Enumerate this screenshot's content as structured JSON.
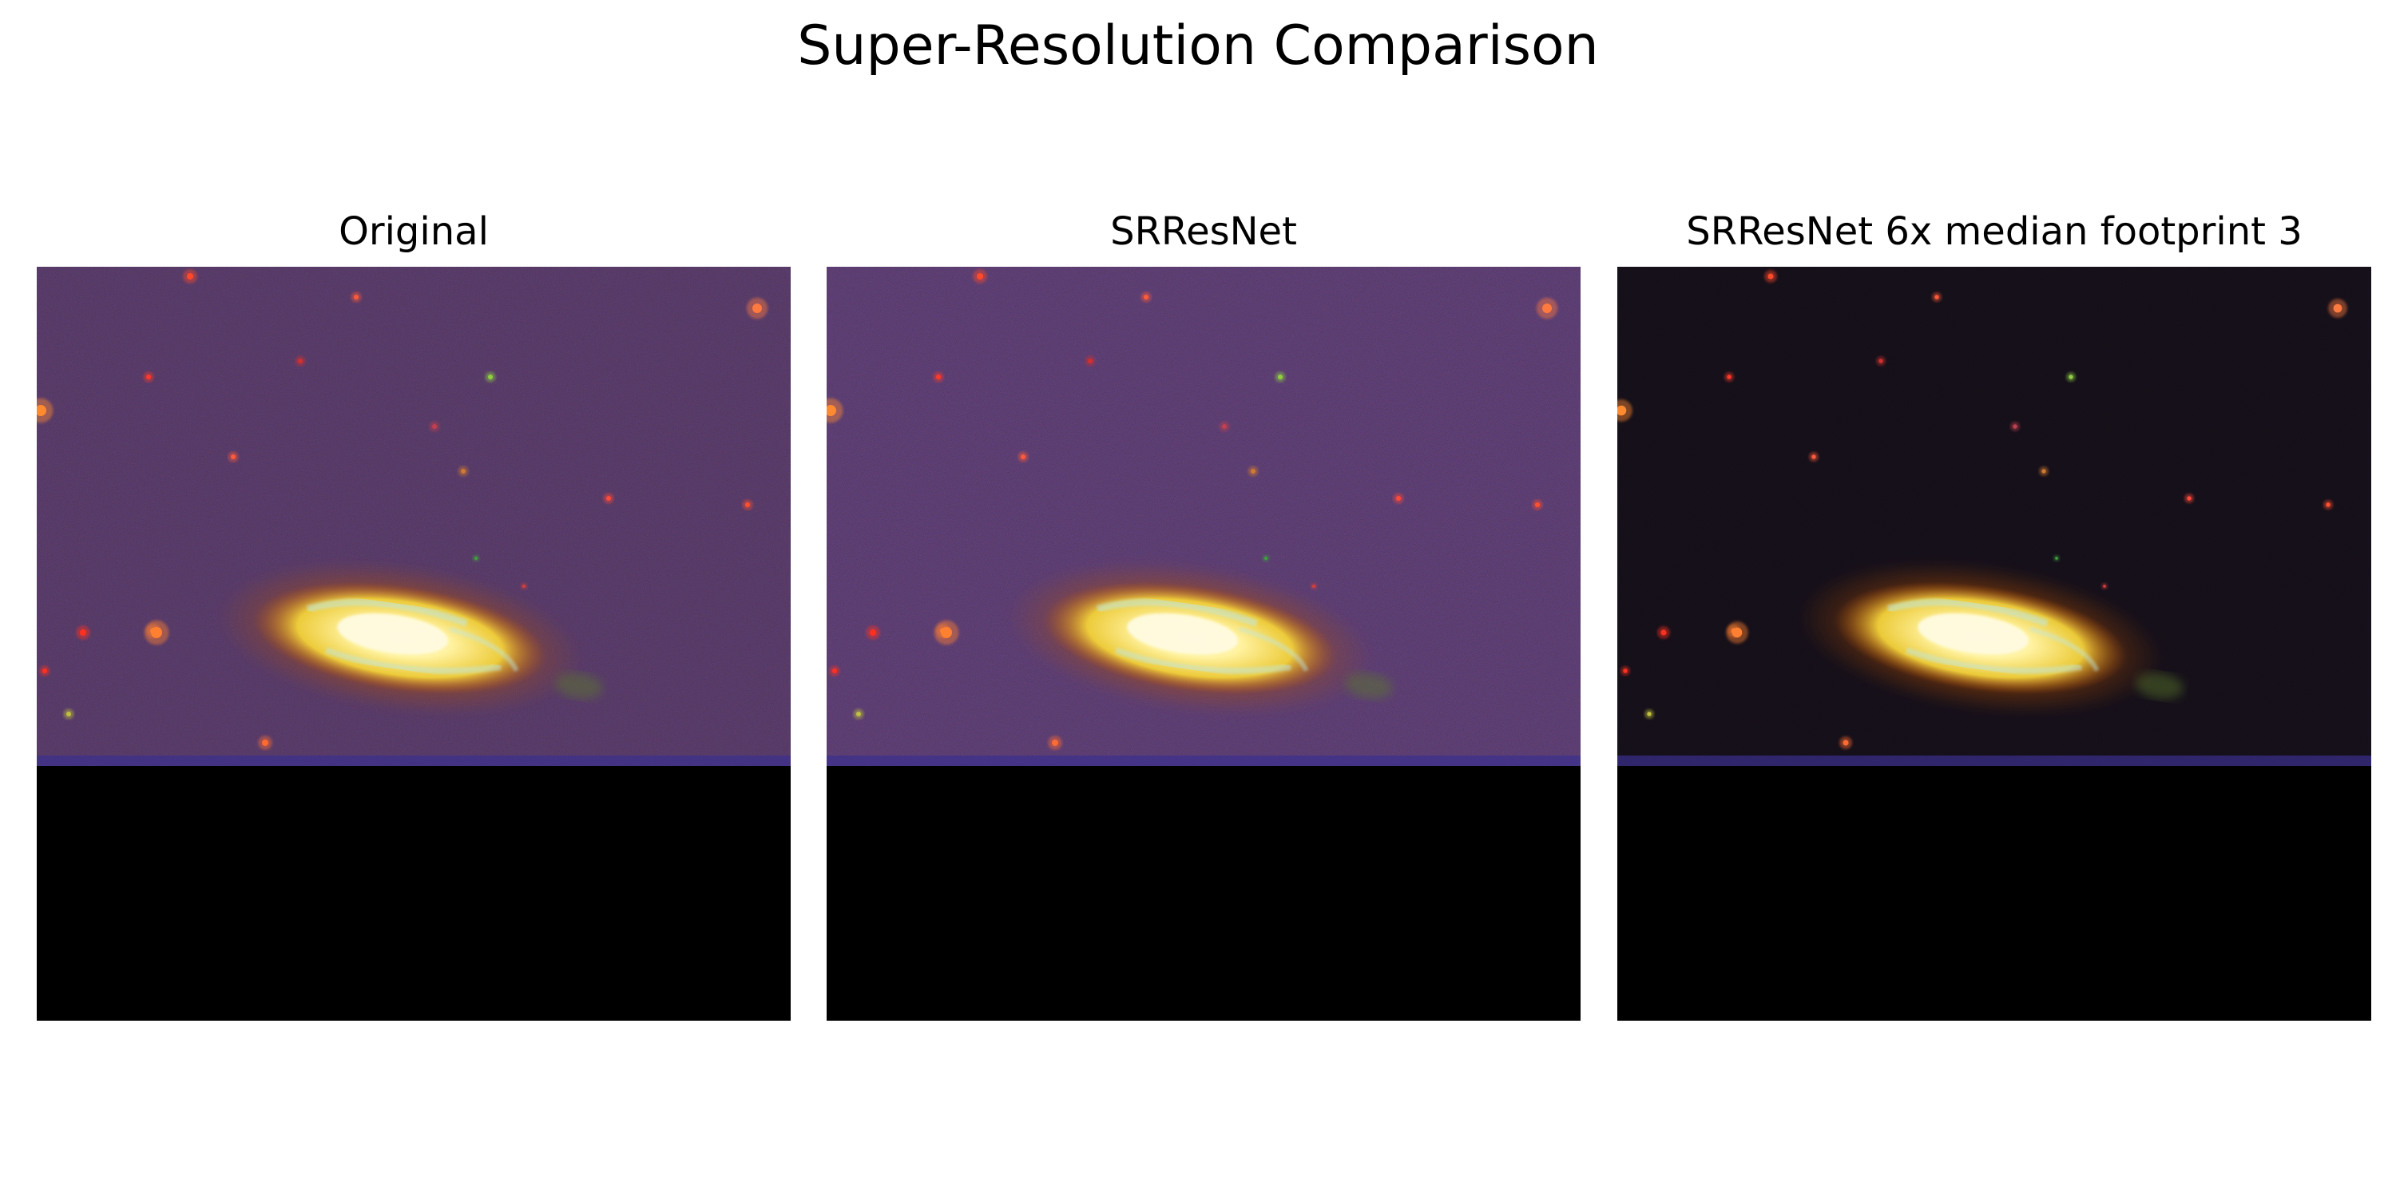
{
  "figure": {
    "title": "Super-Resolution Comparison"
  },
  "panels": [
    {
      "title": "Original",
      "background": "#1d1520",
      "noise_opacity": 0.55,
      "galaxy_shift": 0,
      "star_boost": 1.0
    },
    {
      "title": "SRResNet",
      "background": "#1b1427",
      "noise_opacity": 0.6,
      "galaxy_shift": 0,
      "star_boost": 1.0
    },
    {
      "title": "SRResNet 6x median footprint 3",
      "background": "#060607",
      "noise_opacity": 0.12,
      "galaxy_shift": 0,
      "star_boost": 0.9
    }
  ],
  "colors": {
    "galaxy_core": "#fffbe0",
    "galaxy_mid": "#f2d23a",
    "galaxy_outer": "#b8520f",
    "arm_blue": "#bfe8e4",
    "horizon_band": "#3a2f8f",
    "blank_region": "#000000"
  }
}
